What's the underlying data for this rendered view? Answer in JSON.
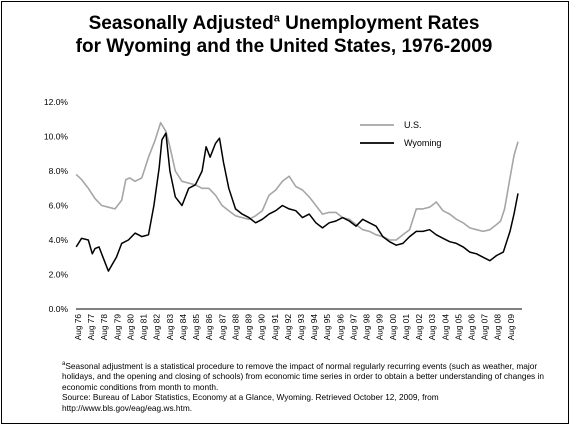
{
  "title_part1": "Seasonally Adjusted",
  "title_sup": "a",
  "title_part2": " Unemployment Rates",
  "title_line2": "for Wyoming and the United States, 1976-2009",
  "footnote_marker": "a",
  "footnote_text": "Seasonal adjustment is a statistical procedure to remove the impact of normal regularly recurring events (such as weather, major holidays, and the opening and closing of schools) from economic time series in order to obtain a better understanding of changes in economic conditions from month to month.",
  "source_text": "Source: Bureau of Labor Statistics, Economy at a Glance, Wyoming. Retrieved October 12, 2009, from http://www.bls.gov/eag/eag.ws.htm.",
  "colors": {
    "us": "#a6a6a6",
    "wyoming": "#000000",
    "axis": "#000000"
  },
  "chart_data": {
    "type": "line",
    "ylim": [
      0,
      12
    ],
    "yticks": [
      "0.0%",
      "2.0%",
      "4.0%",
      "6.0%",
      "8.0%",
      "10.0%",
      "12.0%"
    ],
    "ytick_values": [
      0,
      2,
      4,
      6,
      8,
      10,
      12
    ],
    "xlim": [
      1976.583,
      2009.75
    ],
    "xticks": [
      "Aug 76",
      "Aug 77",
      "Aug 78",
      "Aug 79",
      "Aug 80",
      "Aug 81",
      "Aug 82",
      "Aug 83",
      "Aug 84",
      "Aug 85",
      "Aug 86",
      "Aug 87",
      "Aug 88",
      "Aug 89",
      "Aug 90",
      "Aug 91",
      "Aug 92",
      "Aug 93",
      "Aug 94",
      "Aug 95",
      "Aug 96",
      "Aug 97",
      "Aug 98",
      "Aug 99",
      "Aug 00",
      "Aug 01",
      "Aug 02",
      "Aug 03",
      "Aug 04",
      "Aug 05",
      "Aug 06",
      "Aug 07",
      "Aug 08",
      "Aug 09"
    ],
    "legend_position": "top-right",
    "series": [
      {
        "name": "U.S.",
        "x": [
          1976.6,
          1977.0,
          1977.5,
          1978.0,
          1978.5,
          1979.0,
          1979.5,
          1980.0,
          1980.3,
          1980.6,
          1981.0,
          1981.5,
          1982.0,
          1982.5,
          1982.9,
          1983.3,
          1983.6,
          1984.0,
          1984.5,
          1985.0,
          1985.5,
          1986.0,
          1986.5,
          1987.0,
          1987.5,
          1988.0,
          1988.5,
          1989.0,
          1989.5,
          1990.0,
          1990.5,
          1991.0,
          1991.5,
          1992.0,
          1992.5,
          1993.0,
          1993.5,
          1994.0,
          1994.5,
          1995.0,
          1995.5,
          1996.0,
          1996.5,
          1997.0,
          1997.5,
          1998.0,
          1998.5,
          1999.0,
          1999.5,
          2000.0,
          2000.5,
          2001.0,
          2001.5,
          2002.0,
          2002.5,
          2003.0,
          2003.5,
          2004.0,
          2004.5,
          2005.0,
          2005.5,
          2006.0,
          2006.5,
          2007.0,
          2007.5,
          2008.0,
          2008.3,
          2008.6,
          2009.0,
          2009.3,
          2009.6
        ],
        "values": [
          7.8,
          7.5,
          7.0,
          6.4,
          6.0,
          5.9,
          5.8,
          6.3,
          7.5,
          7.6,
          7.4,
          7.6,
          8.8,
          9.8,
          10.8,
          10.3,
          9.4,
          8.0,
          7.4,
          7.3,
          7.2,
          7.0,
          7.0,
          6.6,
          6.0,
          5.7,
          5.4,
          5.3,
          5.2,
          5.4,
          5.7,
          6.6,
          6.9,
          7.4,
          7.7,
          7.1,
          6.9,
          6.5,
          6.0,
          5.5,
          5.6,
          5.6,
          5.3,
          5.2,
          4.9,
          4.6,
          4.5,
          4.3,
          4.2,
          4.0,
          4.0,
          4.3,
          4.6,
          5.8,
          5.8,
          5.9,
          6.2,
          5.7,
          5.5,
          5.2,
          5.0,
          4.7,
          4.6,
          4.5,
          4.6,
          4.9,
          5.1,
          5.8,
          7.6,
          8.9,
          9.7
        ]
      },
      {
        "name": "Wyoming",
        "x": [
          1976.6,
          1977.0,
          1977.5,
          1977.8,
          1978.0,
          1978.3,
          1978.6,
          1979.0,
          1979.3,
          1979.6,
          1980.0,
          1980.5,
          1981.0,
          1981.5,
          1982.0,
          1982.4,
          1982.8,
          1983.0,
          1983.3,
          1983.6,
          1984.0,
          1984.5,
          1985.0,
          1985.5,
          1986.0,
          1986.3,
          1986.6,
          1987.0,
          1987.3,
          1987.6,
          1988.0,
          1988.5,
          1989.0,
          1989.5,
          1990.0,
          1990.5,
          1991.0,
          1991.5,
          1992.0,
          1992.5,
          1993.0,
          1993.5,
          1994.0,
          1994.5,
          1995.0,
          1995.5,
          1996.0,
          1996.5,
          1997.0,
          1997.5,
          1998.0,
          1998.5,
          1999.0,
          1999.5,
          2000.0,
          2000.5,
          2001.0,
          2001.5,
          2002.0,
          2002.5,
          2003.0,
          2003.5,
          2004.0,
          2004.5,
          2005.0,
          2005.5,
          2006.0,
          2006.5,
          2007.0,
          2007.5,
          2008.0,
          2008.5,
          2009.0,
          2009.3,
          2009.6
        ],
        "values": [
          3.6,
          4.1,
          4.0,
          3.2,
          3.5,
          3.6,
          3.0,
          2.2,
          2.6,
          3.0,
          3.8,
          4.0,
          4.4,
          4.2,
          4.3,
          6.0,
          8.2,
          9.8,
          10.2,
          8.0,
          6.5,
          6.0,
          7.0,
          7.2,
          8.0,
          9.4,
          8.8,
          9.6,
          9.9,
          8.5,
          7.0,
          5.8,
          5.5,
          5.3,
          5.0,
          5.2,
          5.5,
          5.7,
          6.0,
          5.8,
          5.7,
          5.3,
          5.5,
          5.0,
          4.7,
          5.0,
          5.1,
          5.3,
          5.1,
          4.8,
          5.2,
          5.0,
          4.8,
          4.2,
          3.9,
          3.7,
          3.8,
          4.2,
          4.5,
          4.5,
          4.6,
          4.3,
          4.1,
          3.9,
          3.8,
          3.6,
          3.3,
          3.2,
          3.0,
          2.8,
          3.1,
          3.3,
          4.5,
          5.5,
          6.7
        ]
      }
    ]
  }
}
